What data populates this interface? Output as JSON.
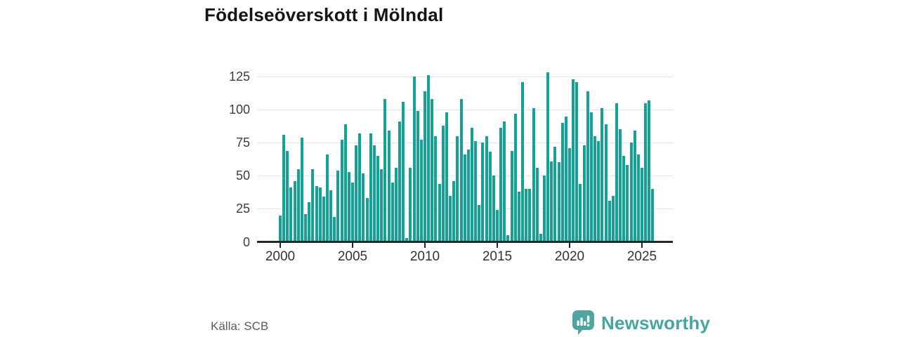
{
  "title": "Födelseöverskott i Mölndal",
  "source": "Källa: SCB",
  "branding": {
    "name": "Newsworthy",
    "logo_icon": "speech-bubble-bar-chart-icon"
  },
  "colors": {
    "bar": "#12a296",
    "grid": "#e2e2e2",
    "axis": "#262626",
    "title_text": "#151515",
    "tick_text": "#3d3d3d",
    "source_text": "#5a5a5a",
    "brand_teal": "#48a4a0",
    "logo_bubble": "#4fa5a1"
  },
  "chart_data": {
    "type": "bar",
    "title": "Födelseöverskott i Mölndal",
    "xlabel": "",
    "ylabel": "",
    "frequency": "quarterly",
    "grid": "horizontal-only",
    "legend": "none",
    "ylim": [
      0,
      130
    ],
    "y_ticks": [
      "0",
      "25",
      "50",
      "75",
      "100",
      "125"
    ],
    "x_tick_labels": [
      "2000",
      "2005",
      "2010",
      "2015",
      "2020",
      "2025"
    ],
    "by_year": [
      {
        "year": 2000,
        "q": [
          20,
          81,
          69,
          41
        ]
      },
      {
        "year": 2001,
        "q": [
          46,
          55,
          79,
          21
        ]
      },
      {
        "year": 2002,
        "q": [
          30,
          55,
          42,
          41
        ]
      },
      {
        "year": 2003,
        "q": [
          34,
          66,
          39,
          19
        ]
      },
      {
        "year": 2004,
        "q": [
          54,
          77,
          89,
          53
        ]
      },
      {
        "year": 2005,
        "q": [
          45,
          73,
          82,
          52
        ]
      },
      {
        "year": 2006,
        "q": [
          33,
          82,
          73,
          65
        ]
      },
      {
        "year": 2007,
        "q": [
          55,
          108,
          84,
          45
        ]
      },
      {
        "year": 2008,
        "q": [
          56,
          91,
          106,
          3
        ]
      },
      {
        "year": 2009,
        "q": [
          56,
          125,
          99,
          77
        ]
      },
      {
        "year": 2010,
        "q": [
          114,
          126,
          108,
          80
        ]
      },
      {
        "year": 2011,
        "q": [
          44,
          88,
          98,
          35
        ]
      },
      {
        "year": 2012,
        "q": [
          46,
          80,
          108,
          66
        ]
      },
      {
        "year": 2013,
        "q": [
          70,
          86,
          76,
          28
        ]
      },
      {
        "year": 2014,
        "q": [
          75,
          80,
          68,
          50
        ]
      },
      {
        "year": 2015,
        "q": [
          24,
          86,
          91,
          5
        ]
      },
      {
        "year": 2016,
        "q": [
          69,
          97,
          38,
          121
        ]
      },
      {
        "year": 2017,
        "q": [
          40,
          40,
          101,
          56
        ]
      },
      {
        "year": 2018,
        "q": [
          6,
          50,
          128,
          61
        ]
      },
      {
        "year": 2019,
        "q": [
          72,
          60,
          90,
          95
        ]
      },
      {
        "year": 2020,
        "q": [
          71,
          123,
          121,
          44
        ]
      },
      {
        "year": 2021,
        "q": [
          73,
          114,
          98,
          80
        ]
      },
      {
        "year": 2022,
        "q": [
          76,
          101,
          89,
          31
        ]
      },
      {
        "year": 2023,
        "q": [
          35,
          105,
          85,
          65
        ]
      },
      {
        "year": 2024,
        "q": [
          58,
          75,
          84,
          66
        ]
      },
      {
        "year": 2025,
        "q": [
          56,
          105,
          107,
          40
        ]
      }
    ]
  }
}
